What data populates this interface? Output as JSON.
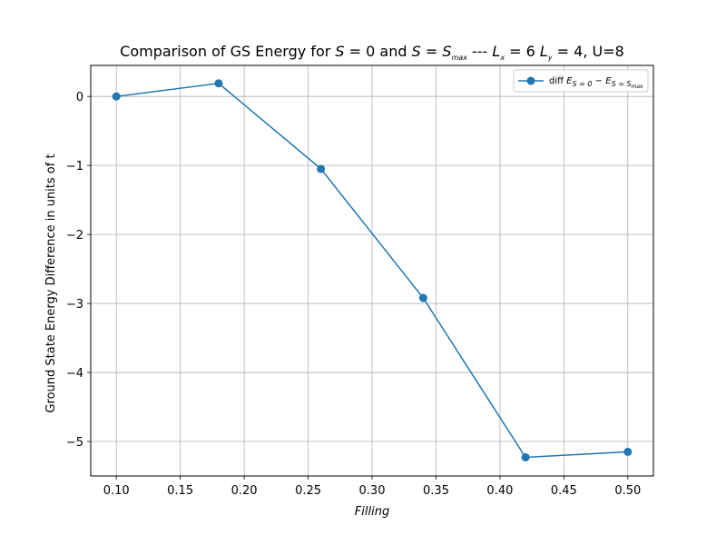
{
  "chart_data": {
    "type": "line",
    "title": "Comparison of GS Energy for S = 0 and S = S_max --- L_x = 6 L_y = 4, U=8",
    "title_parts": {
      "pre": "Comparison of GS Energy for ",
      "s1_var": "S",
      "s1_eq": " = 0",
      "and": " and ",
      "s2_var": "S",
      "s2_eq": " = ",
      "s2_rhs_var": "S",
      "s2_rhs_sub": "max",
      "dashes": " --- ",
      "lx_var": "L",
      "lx_sub": "x",
      "lx_eq": " = 6 ",
      "ly_var": "L",
      "ly_sub": "y",
      "ly_eq": " = 4, U=8"
    },
    "xlabel": "Filling",
    "ylabel": "Ground State Energy Difference in units of t",
    "xlim": [
      0.08,
      0.52
    ],
    "ylim": [
      -5.5,
      0.45
    ],
    "xticks": [
      0.1,
      0.15,
      0.2,
      0.25,
      0.3,
      0.35,
      0.4,
      0.45,
      0.5
    ],
    "xtick_labels": [
      "0.10",
      "0.15",
      "0.20",
      "0.25",
      "0.30",
      "0.35",
      "0.40",
      "0.45",
      "0.50"
    ],
    "yticks": [
      0,
      -1,
      -2,
      -3,
      -4,
      -5
    ],
    "ytick_labels": [
      "0",
      "−1",
      "−2",
      "−3",
      "−4",
      "−5"
    ],
    "grid": true,
    "legend_position": "top-right",
    "series": [
      {
        "name": "diff E_{S=0} − E_{S=S_max}",
        "legend_parts": {
          "prefix": "diff  ",
          "e1_var": "E",
          "e1_sub": "S = 0",
          "minus": " − ",
          "e2_var": "E",
          "e2_sub": "S = S",
          "e2_subsub": "max"
        },
        "color": "#1f77b4",
        "marker": "circle",
        "x": [
          0.1,
          0.18,
          0.26,
          0.34,
          0.42,
          0.5
        ],
        "y": [
          0.0,
          0.19,
          -1.05,
          -2.92,
          -5.23,
          -5.15
        ]
      }
    ]
  }
}
